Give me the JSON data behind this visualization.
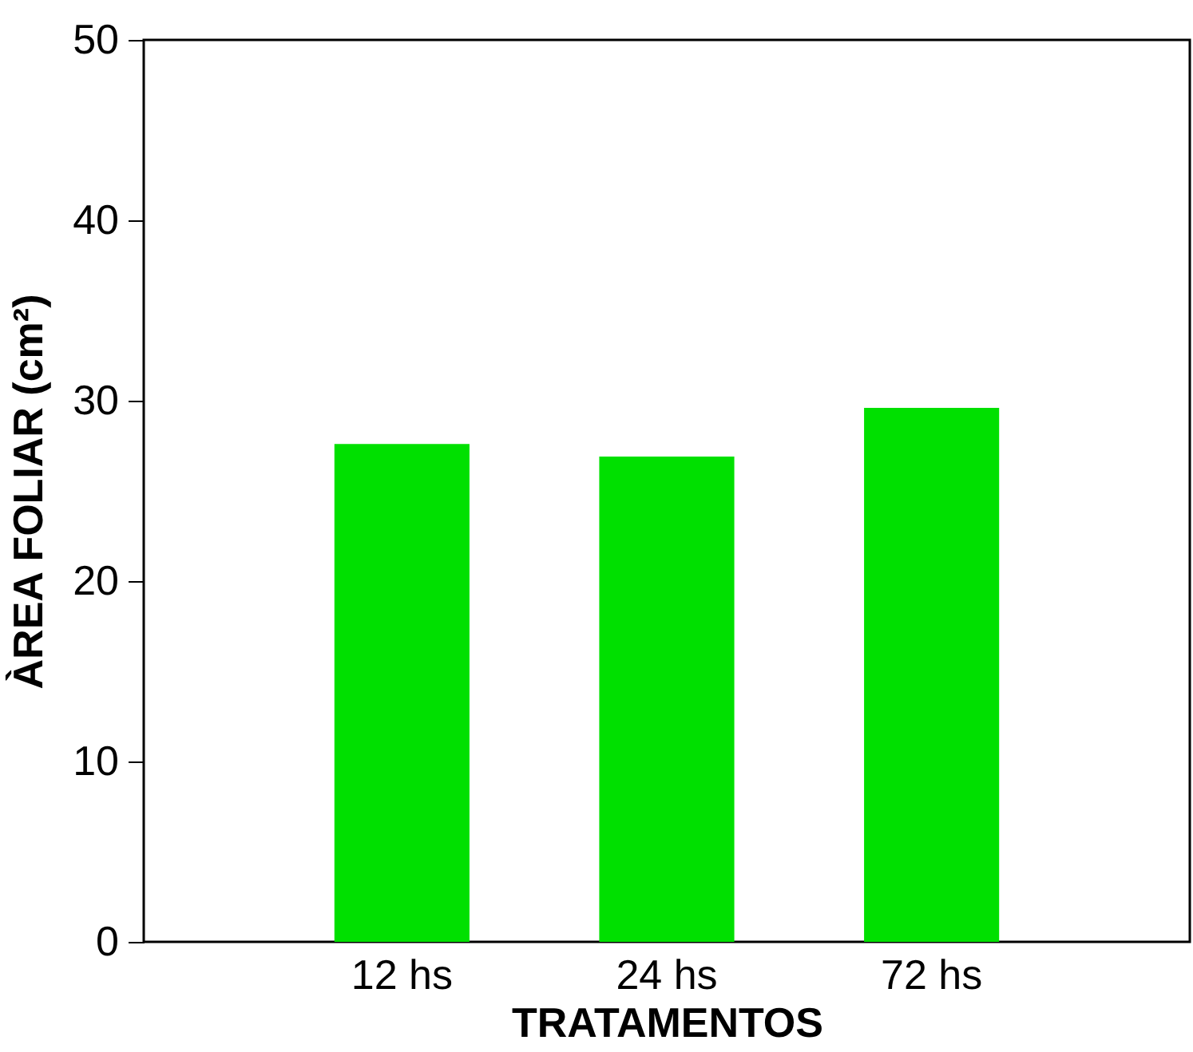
{
  "chart_data": {
    "type": "bar",
    "xlabel": "TRATAMENTOS",
    "ylabel": "ÀREA FOLIAR (cm²)",
    "categories": [
      "12 hs",
      "24 hs",
      "72 hs"
    ],
    "values": [
      27.6,
      26.9,
      29.6
    ],
    "color": "#00e000",
    "ylim": [
      0,
      50
    ],
    "yticks": [
      0,
      10,
      20,
      30,
      40,
      50
    ],
    "grid": false
  }
}
